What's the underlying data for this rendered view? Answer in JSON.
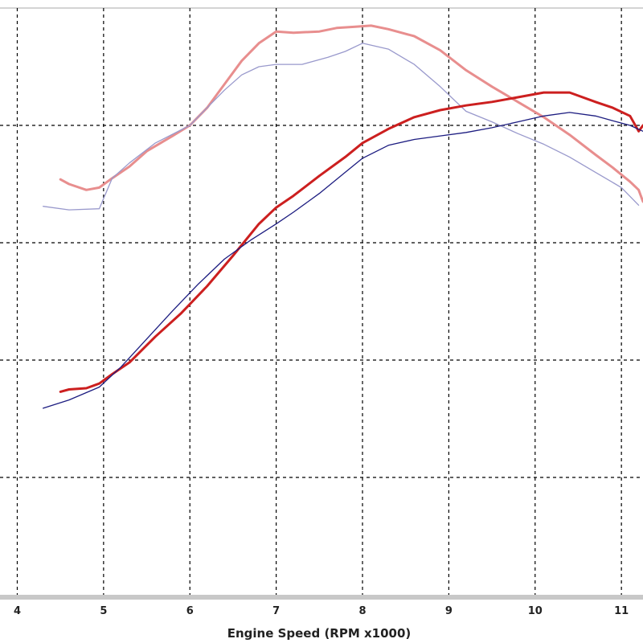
{
  "chart_data": {
    "type": "line",
    "xlabel": "Engine Speed (RPM x1000)",
    "ylabel": "",
    "title": "",
    "x_ticks": [
      4,
      5,
      6,
      7,
      8,
      9,
      10,
      11
    ],
    "xlim": [
      3.8,
      11.25
    ],
    "ylim": [
      0,
      5
    ],
    "grid": true,
    "series": [
      {
        "color": "#e88e8e",
        "width": 3,
        "points": [
          [
            4.5,
            3.54
          ],
          [
            4.6,
            3.5
          ],
          [
            4.8,
            3.45
          ],
          [
            4.95,
            3.47
          ],
          [
            5.1,
            3.55
          ],
          [
            5.3,
            3.65
          ],
          [
            5.5,
            3.78
          ],
          [
            5.8,
            3.91
          ],
          [
            6.0,
            4.0
          ],
          [
            6.2,
            4.15
          ],
          [
            6.4,
            4.35
          ],
          [
            6.6,
            4.55
          ],
          [
            6.8,
            4.7
          ],
          [
            7.0,
            4.8
          ],
          [
            7.2,
            4.79
          ],
          [
            7.5,
            4.8
          ],
          [
            7.7,
            4.83
          ],
          [
            7.9,
            4.84
          ],
          [
            8.1,
            4.85
          ],
          [
            8.3,
            4.82
          ],
          [
            8.6,
            4.76
          ],
          [
            8.9,
            4.64
          ],
          [
            9.2,
            4.47
          ],
          [
            9.5,
            4.33
          ],
          [
            9.8,
            4.2
          ],
          [
            10.1,
            4.07
          ],
          [
            10.4,
            3.92
          ],
          [
            10.7,
            3.75
          ],
          [
            10.9,
            3.64
          ],
          [
            11.1,
            3.52
          ],
          [
            11.2,
            3.45
          ],
          [
            11.25,
            3.35
          ]
        ]
      },
      {
        "color": "#9999cc",
        "width": 1.3,
        "points": [
          [
            4.3,
            3.31
          ],
          [
            4.6,
            3.28
          ],
          [
            4.95,
            3.29
          ],
          [
            5.1,
            3.55
          ],
          [
            5.3,
            3.68
          ],
          [
            5.6,
            3.85
          ],
          [
            6.0,
            4.0
          ],
          [
            6.2,
            4.15
          ],
          [
            6.4,
            4.3
          ],
          [
            6.6,
            4.43
          ],
          [
            6.8,
            4.5
          ],
          [
            7.0,
            4.52
          ],
          [
            7.3,
            4.52
          ],
          [
            7.6,
            4.58
          ],
          [
            7.8,
            4.63
          ],
          [
            8.0,
            4.7
          ],
          [
            8.3,
            4.65
          ],
          [
            8.6,
            4.52
          ],
          [
            8.9,
            4.33
          ],
          [
            9.2,
            4.12
          ],
          [
            9.5,
            4.03
          ],
          [
            9.8,
            3.93
          ],
          [
            10.1,
            3.84
          ],
          [
            10.4,
            3.73
          ],
          [
            10.7,
            3.6
          ],
          [
            11.0,
            3.47
          ],
          [
            11.2,
            3.32
          ]
        ]
      },
      {
        "color": "#cc1f1f",
        "width": 3,
        "points": [
          [
            4.5,
            1.73
          ],
          [
            4.6,
            1.75
          ],
          [
            4.8,
            1.76
          ],
          [
            4.95,
            1.8
          ],
          [
            5.1,
            1.88
          ],
          [
            5.3,
            1.98
          ],
          [
            5.6,
            2.2
          ],
          [
            5.9,
            2.4
          ],
          [
            6.2,
            2.63
          ],
          [
            6.5,
            2.89
          ],
          [
            6.8,
            3.16
          ],
          [
            7.0,
            3.3
          ],
          [
            7.2,
            3.4
          ],
          [
            7.5,
            3.57
          ],
          [
            7.8,
            3.73
          ],
          [
            8.0,
            3.85
          ],
          [
            8.3,
            3.97
          ],
          [
            8.6,
            4.07
          ],
          [
            8.9,
            4.13
          ],
          [
            9.2,
            4.17
          ],
          [
            9.5,
            4.2
          ],
          [
            9.8,
            4.24
          ],
          [
            10.1,
            4.28
          ],
          [
            10.4,
            4.28
          ],
          [
            10.7,
            4.2
          ],
          [
            10.9,
            4.15
          ],
          [
            11.1,
            4.08
          ],
          [
            11.2,
            3.95
          ],
          [
            11.25,
            4.0
          ]
        ]
      },
      {
        "color": "#1c1c80",
        "width": 1.3,
        "points": [
          [
            4.3,
            1.59
          ],
          [
            4.6,
            1.66
          ],
          [
            4.95,
            1.77
          ],
          [
            5.2,
            1.94
          ],
          [
            5.5,
            2.18
          ],
          [
            5.8,
            2.42
          ],
          [
            6.1,
            2.65
          ],
          [
            6.4,
            2.86
          ],
          [
            6.7,
            3.02
          ],
          [
            7.0,
            3.16
          ],
          [
            7.2,
            3.26
          ],
          [
            7.5,
            3.42
          ],
          [
            7.8,
            3.6
          ],
          [
            8.0,
            3.72
          ],
          [
            8.3,
            3.83
          ],
          [
            8.6,
            3.88
          ],
          [
            8.9,
            3.91
          ],
          [
            9.2,
            3.94
          ],
          [
            9.5,
            3.98
          ],
          [
            9.8,
            4.03
          ],
          [
            10.1,
            4.08
          ],
          [
            10.4,
            4.11
          ],
          [
            10.7,
            4.08
          ],
          [
            10.9,
            4.04
          ],
          [
            11.1,
            4.0
          ],
          [
            11.25,
            3.95
          ]
        ]
      }
    ]
  }
}
